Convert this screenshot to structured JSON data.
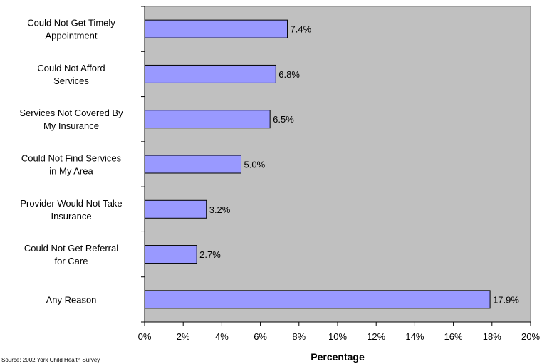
{
  "chart_data": {
    "type": "bar",
    "orientation": "horizontal",
    "categories": [
      [
        "Could Not Get Timely",
        "Appointment"
      ],
      [
        "Could Not Afford",
        "Services"
      ],
      [
        "Services Not Covered By",
        "My Insurance"
      ],
      [
        "Could Not Find Services",
        "in My Area"
      ],
      [
        "Provider Would Not Take",
        "Insurance"
      ],
      [
        "Could Not Get Referral",
        "for Care"
      ],
      [
        "Any Reason"
      ]
    ],
    "values": [
      7.4,
      6.8,
      6.5,
      5.0,
      3.2,
      2.7,
      17.9
    ],
    "value_labels": [
      "7.4%",
      "6.8%",
      "6.5%",
      "5.0%",
      "3.2%",
      "2.7%",
      "17.9%"
    ],
    "xlabel": "Percentage",
    "xlim": [
      0,
      20
    ],
    "x_ticks": [
      "0%",
      "2%",
      "4%",
      "6%",
      "8%",
      "10%",
      "12%",
      "14%",
      "16%",
      "18%",
      "20%"
    ],
    "grid": false,
    "legend": "none",
    "colors": {
      "plot_background": "#c0c0c0",
      "bar_fill": "#9999ff",
      "bar_stroke": "#000000"
    }
  },
  "source_note": "Source: 2002 York Child Health Survey"
}
